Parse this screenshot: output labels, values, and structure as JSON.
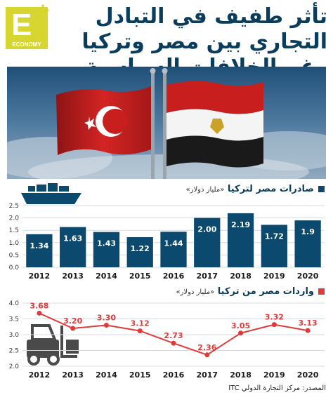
{
  "header": {
    "title": "تأثر طفيف في التبادل التجاري بين مصر وتركيا رغم الخلافات السياسية",
    "logo_letter": "E",
    "logo_plus": "+",
    "logo_word": "ECONOMY"
  },
  "colors": {
    "navy": "#0b4a6e",
    "red": "#e03a3a",
    "dark_text": "#0a3d5c",
    "logo": "#d7d630"
  },
  "source": {
    "label": "المصدر: مركز التجارة الدولي ITC"
  },
  "chart_data": [
    {
      "type": "bar",
      "title": "صادرات مصر لتركيا",
      "unit": "«مليار دولار»",
      "categories": [
        "2012",
        "2013",
        "2014",
        "2015",
        "2016",
        "2017",
        "2018",
        "2019",
        "2020"
      ],
      "values": [
        1.34,
        1.63,
        1.43,
        1.22,
        1.44,
        2.0,
        2.19,
        1.72,
        1.9
      ],
      "value_labels": [
        "1.34",
        "1.63",
        "1.43",
        "1.22",
        "1.44",
        "2.00",
        "2.19",
        "1.72",
        "1.9"
      ],
      "ylim": [
        0,
        2.5
      ],
      "yticks": [
        "0.0",
        "0.5",
        "1.0",
        "1.5",
        "2.0",
        "2.5"
      ],
      "grid": true,
      "icon": "cargo-ship-icon"
    },
    {
      "type": "line",
      "title": "واردات مصر من تركيا",
      "unit": "«مليار دولار»",
      "categories": [
        "2012",
        "2013",
        "2014",
        "2015",
        "2016",
        "2017",
        "2018",
        "2019",
        "2020"
      ],
      "values": [
        3.68,
        3.2,
        3.3,
        3.12,
        2.73,
        2.36,
        3.05,
        3.32,
        3.13
      ],
      "value_labels": [
        "3.68",
        "3.20",
        "3.30",
        "3.12",
        "2.73",
        "2.36",
        "3.05",
        "3.32",
        "3.13"
      ],
      "ylim": [
        2.0,
        4.0
      ],
      "yticks": [
        "2.0",
        "2.5",
        "3.0",
        "3.5",
        "4.0"
      ],
      "grid": true,
      "icon": "forklift-icon"
    }
  ]
}
